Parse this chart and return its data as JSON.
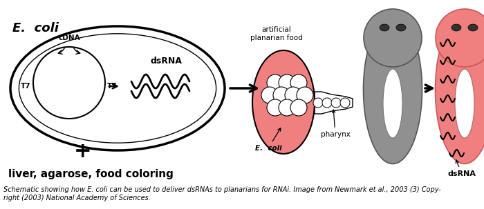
{
  "bg_color": "#ffffff",
  "fig_w": 7.0,
  "fig_h": 3.03,
  "dpi": 100,
  "xlim": [
    0,
    700
  ],
  "ylim": [
    0,
    303
  ],
  "caption": "Schematic showing how E. coli can be used to deliver dsRNAs to planarians for RNAi. Image from Newmark et al., 2003 (3) Copy-\nright (2003) National Academy of Sciences.",
  "caption_fontsize": 7.0
}
